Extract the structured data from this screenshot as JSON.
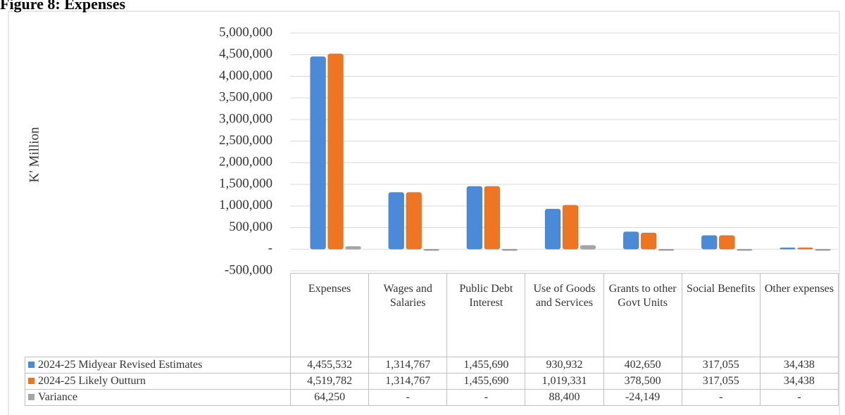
{
  "chart_data": {
    "type": "bar",
    "title": "Figure 8: Expenses",
    "y_label": "K' Million",
    "categories": [
      "Expenses",
      "Wages and Salaries",
      "Public Debt Interest",
      "Use of Goods and Services",
      "Grants to other Govt Units",
      "Social Benefits",
      "Other expenses"
    ],
    "series": [
      {
        "name": "2024-25 Midyear Revised Estimates",
        "color": "#4a8ad6",
        "values": [
          4455532,
          1314767,
          1455690,
          930932,
          402650,
          317055,
          34438
        ],
        "value_labels": [
          "4,455,532",
          "1,314,767",
          "1,455,690",
          "930,932",
          "402,650",
          "317,055",
          "34,438"
        ]
      },
      {
        "name": "2024-25 Likely Outturn",
        "color": "#ee7623",
        "values": [
          4519782,
          1314767,
          1455690,
          1019331,
          378500,
          317055,
          34438
        ],
        "value_labels": [
          "4,519,782",
          "1,314,767",
          "1,455,690",
          "1,019,331",
          "378,500",
          "317,055",
          "34,438"
        ]
      },
      {
        "name": "Variance",
        "color": "#a5a5a5",
        "values": [
          64250,
          0,
          0,
          88400,
          -24149,
          0,
          0
        ],
        "value_labels": [
          "64,250",
          "-",
          "-",
          "88,400",
          "-24,149",
          "-",
          "-"
        ]
      }
    ],
    "ylim": [
      -500000,
      5000000
    ],
    "yticks": [
      {
        "value": -500000,
        "label": "-500,000"
      },
      {
        "value": 0,
        "label": "-"
      },
      {
        "value": 500000,
        "label": "500,000"
      },
      {
        "value": 1000000,
        "label": "1,000,000"
      },
      {
        "value": 1500000,
        "label": "1,500,000"
      },
      {
        "value": 2000000,
        "label": "2,000,000"
      },
      {
        "value": 2500000,
        "label": "2,500,000"
      },
      {
        "value": 3000000,
        "label": "3,000,000"
      },
      {
        "value": 3500000,
        "label": "3,500,000"
      },
      {
        "value": 4000000,
        "label": "4,000,000"
      },
      {
        "value": 4500000,
        "label": "4,500,000"
      },
      {
        "value": 5000000,
        "label": "5,000,000"
      }
    ],
    "grid": true
  }
}
